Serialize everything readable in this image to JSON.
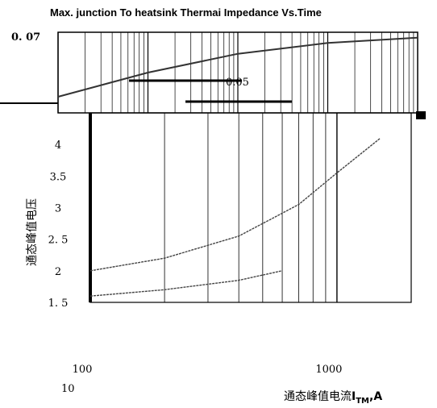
{
  "chart_data": {
    "type": "line",
    "title": "Max. junction To heatsink Thermai Impedance Vs.Time",
    "top_value_label": "0. 07",
    "inner_label": "0.05",
    "xlabel": "通态峰值电流",
    "xlabel_sub": "TM",
    "xlabel_prefix": "I",
    "xlabel_unit": ",A",
    "ylabel": "通态峰值电压",
    "x_scale": "log",
    "xlim": [
      100,
      2000
    ],
    "ylim": [
      1.5,
      4.5
    ],
    "x_tick_labels": [
      "100",
      "1000"
    ],
    "x_extra_label": "10",
    "y_tick_labels": [
      "4",
      "3.5",
      "3",
      "2. 5",
      "2",
      "1. 5"
    ],
    "grid": true,
    "series": [
      {
        "x": [
          100,
          200,
          400,
          700,
          1000,
          1500
        ],
        "y": [
          2.0,
          2.2,
          2.55,
          3.05,
          3.55,
          4.1
        ]
      },
      {
        "x": [
          100,
          200,
          400,
          600
        ],
        "y": [
          1.6,
          1.7,
          1.85,
          2.0
        ]
      }
    ],
    "thermal_curve": {
      "x": [
        0.001,
        0.01,
        0.1,
        1,
        10
      ],
      "y": [
        0.046,
        0.055,
        0.062,
        0.066,
        0.068
      ]
    }
  }
}
